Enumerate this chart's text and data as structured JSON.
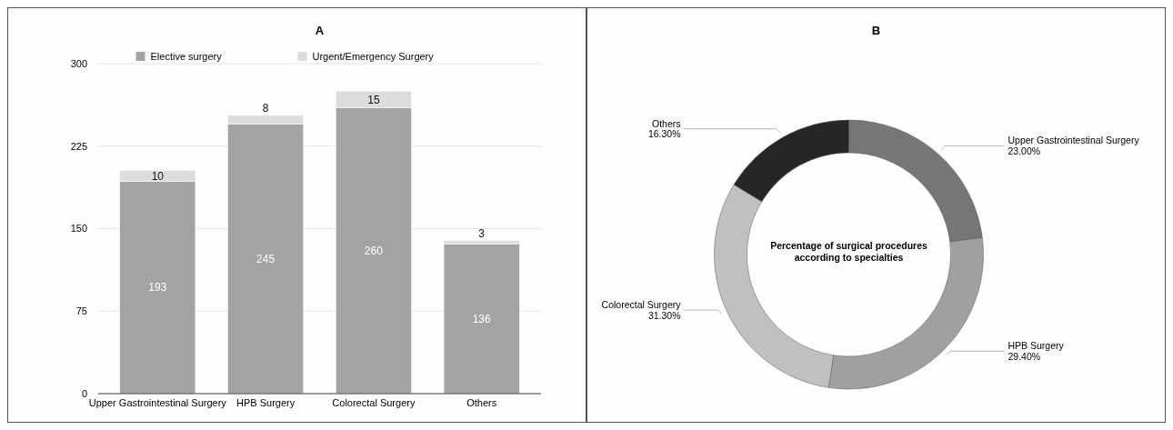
{
  "chart_data": [
    {
      "type": "bar",
      "title": "A",
      "categories": [
        "Upper Gastrointestinal Surgery",
        "HPB Surgery",
        "Colorectal Surgery",
        "Others"
      ],
      "stacked": true,
      "series": [
        {
          "name": "Elective surgery",
          "color": "#a3a3a3",
          "values": [
            193,
            245,
            260,
            136
          ]
        },
        {
          "name": "Urgent/Emergency Surgery",
          "color": "#dcdcdc",
          "values": [
            10,
            8,
            15,
            3
          ]
        }
      ],
      "ylim": [
        0,
        300
      ],
      "yticks": [
        0,
        75,
        150,
        225,
        300
      ],
      "grid": "y",
      "legend": "top",
      "data_labels": true
    },
    {
      "type": "donut",
      "title": "B",
      "annotations": [
        "Percentage of surgical procedures according to specialties"
      ],
      "categories": [
        "Upper Gastrointestinal Surgery",
        "HPB Surgery",
        "Colorectal Surgery",
        "Others"
      ],
      "values": [
        23.0,
        29.4,
        31.3,
        16.3
      ],
      "value_labels": [
        "23.00%",
        "29.40%",
        "31.30%",
        "16.30%"
      ],
      "colors": [
        "#767676",
        "#a0a0a0",
        "#c0c0c0",
        "#262626"
      ]
    }
  ]
}
